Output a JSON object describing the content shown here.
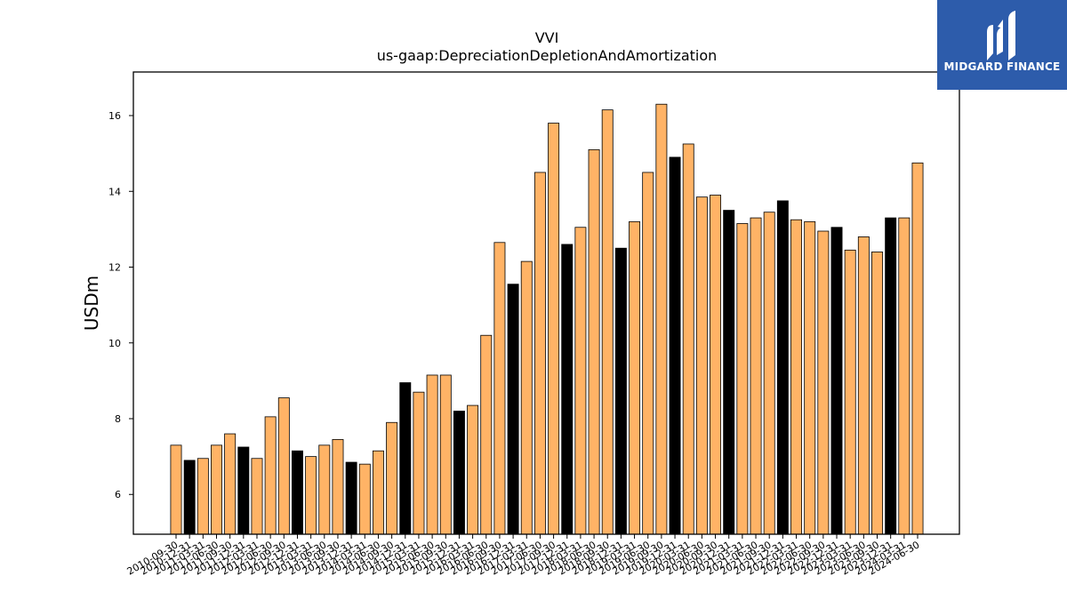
{
  "logo": {
    "text": "MIDGARD FINANCE"
  },
  "chart_data": {
    "type": "bar",
    "title": "VVI",
    "subtitle": "us-gaap:DepreciationDepletionAndAmortization",
    "ylabel": "USDm",
    "xlabel": "",
    "ylim": [
      4.95,
      17.15
    ],
    "yticks": [
      6,
      8,
      10,
      12,
      14,
      16
    ],
    "grid": false,
    "colors": {
      "quarter": "#ffb366",
      "year_end": "#000000",
      "edge": "#000000"
    },
    "categories": [
      "2010-09-30",
      "2010-12-31",
      "2011-03-31",
      "2011-06-30",
      "2011-09-30",
      "2011-12-31",
      "2012-03-31",
      "2012-06-30",
      "2012-09-30",
      "2012-12-31",
      "2013-03-31",
      "2013-06-30",
      "2013-09-30",
      "2013-12-31",
      "2014-03-31",
      "2014-06-30",
      "2014-09-30",
      "2014-12-31",
      "2015-03-31",
      "2015-06-30",
      "2015-09-30",
      "2015-12-31",
      "2016-03-31",
      "2016-06-30",
      "2016-09-30",
      "2016-12-31",
      "2017-03-31",
      "2017-06-30",
      "2017-09-30",
      "2017-12-31",
      "2018-03-31",
      "2018-06-30",
      "2018-09-30",
      "2018-12-31",
      "2019-03-31",
      "2019-06-30",
      "2019-09-30",
      "2019-12-31",
      "2020-03-31",
      "2020-06-30",
      "2020-09-30",
      "2020-12-31",
      "2021-03-31",
      "2021-06-30",
      "2021-09-30",
      "2021-12-31",
      "2022-03-31",
      "2022-06-30",
      "2022-09-30",
      "2022-12-31",
      "2023-03-31",
      "2023-06-30",
      "2023-09-30",
      "2023-12-31",
      "2024-03-31",
      "2024-06-30"
    ],
    "values": [
      7.3,
      6.9,
      6.95,
      7.3,
      7.6,
      7.25,
      6.95,
      8.05,
      8.55,
      7.15,
      7.0,
      7.3,
      7.45,
      6.85,
      6.8,
      7.15,
      7.9,
      8.95,
      8.7,
      9.15,
      9.15,
      8.2,
      8.35,
      10.2,
      12.65,
      11.55,
      12.15,
      14.5,
      15.8,
      12.6,
      13.05,
      15.1,
      16.15,
      12.5,
      13.2,
      14.5,
      16.3,
      14.9,
      15.25,
      13.85,
      13.9,
      13.5,
      13.15,
      13.3,
      13.45,
      13.75,
      13.25,
      13.2,
      12.95,
      13.05,
      12.45,
      12.8,
      12.4,
      13.3,
      13.3,
      14.75
    ],
    "year_end_flags": [
      false,
      true,
      false,
      false,
      false,
      true,
      false,
      false,
      false,
      true,
      false,
      false,
      false,
      true,
      false,
      false,
      false,
      true,
      false,
      false,
      false,
      true,
      false,
      false,
      false,
      true,
      false,
      false,
      false,
      true,
      false,
      false,
      false,
      true,
      false,
      false,
      false,
      true,
      false,
      false,
      false,
      true,
      false,
      false,
      false,
      true,
      false,
      false,
      false,
      true,
      false,
      false,
      false,
      true,
      false,
      false
    ]
  }
}
